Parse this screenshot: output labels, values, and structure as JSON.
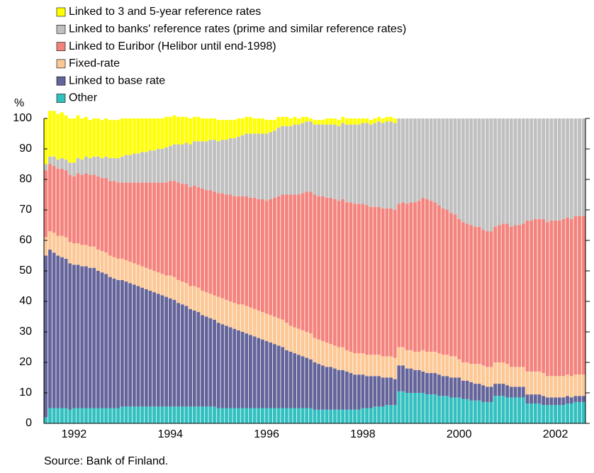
{
  "chart_data": {
    "type": "stacked_bar",
    "y_label": "%",
    "source": "Source: Bank of Finland.",
    "categories": [
      null,
      null,
      null,
      null,
      null,
      null,
      null,
      "1992",
      null,
      null,
      null,
      null,
      null,
      null,
      null,
      null,
      null,
      null,
      null,
      null,
      null,
      null,
      null,
      null,
      null,
      null,
      null,
      null,
      null,
      null,
      null,
      "1994",
      null,
      null,
      null,
      null,
      null,
      null,
      null,
      null,
      null,
      null,
      null,
      null,
      null,
      null,
      null,
      null,
      null,
      null,
      null,
      null,
      null,
      null,
      null,
      "1996",
      null,
      null,
      null,
      null,
      null,
      null,
      null,
      null,
      null,
      null,
      null,
      null,
      null,
      null,
      null,
      null,
      null,
      null,
      null,
      null,
      null,
      null,
      null,
      "1998",
      null,
      null,
      null,
      null,
      null,
      null,
      null,
      null,
      null,
      null,
      null,
      null,
      null,
      null,
      null,
      null,
      null,
      null,
      null,
      null,
      null,
      null,
      null,
      "2000",
      null,
      null,
      null,
      null,
      null,
      null,
      null,
      null,
      null,
      null,
      null,
      null,
      null,
      null,
      null,
      null,
      null,
      null,
      null,
      null,
      null,
      null,
      null,
      "2002",
      null,
      null,
      null,
      null,
      null,
      null,
      null
    ],
    "series": [
      {
        "name": "Linked to 3 and 5-year reference rates",
        "color": "#ffff00",
        "values": [
          15,
          15,
          15,
          15,
          15,
          14.5,
          14.5,
          14.5,
          14,
          13.5,
          13,
          12.5,
          12.5,
          12.5,
          12.5,
          12.5,
          12.5,
          12.5,
          12.5,
          12.5,
          12,
          12,
          11.5,
          11.5,
          11,
          11,
          10.5,
          10.5,
          10,
          10,
          10,
          9.5,
          9.5,
          9,
          9,
          8.5,
          8.5,
          8,
          8,
          7.5,
          7.5,
          7,
          7,
          7,
          6.5,
          6.5,
          6,
          6,
          6,
          5.5,
          5.5,
          5.5,
          5,
          5,
          5,
          4.5,
          4,
          3.5,
          3.5,
          3,
          3,
          2.5,
          2.5,
          2,
          2,
          1.5,
          1,
          1.5,
          1.5,
          1.5,
          2,
          2,
          2,
          2,
          2,
          2,
          2,
          2,
          2,
          1.5,
          1.5,
          1.5,
          1.5,
          1.5,
          1.5,
          1.5,
          1.5,
          1.5,
          0,
          0,
          0,
          0,
          0,
          0,
          0,
          0,
          0,
          0,
          0,
          0,
          0,
          0,
          0,
          0,
          0,
          0,
          0,
          0,
          0,
          0,
          0,
          0,
          0,
          0,
          0,
          0,
          0,
          0,
          0,
          0,
          0,
          0,
          0,
          0,
          0,
          0,
          0,
          0,
          0,
          0,
          0,
          0,
          0,
          0,
          0
        ]
      },
      {
        "name": "Linked to banks' reference rates (prime and similar reference rates)",
        "color": "#c0c0c0",
        "values": [
          2,
          2.5,
          3,
          3,
          3.5,
          3.5,
          4,
          4.5,
          5,
          5,
          5.5,
          5.5,
          6,
          6.5,
          6.5,
          7,
          7.5,
          7.5,
          8,
          8.5,
          9,
          9,
          9.5,
          9.5,
          10,
          10,
          10.5,
          10.5,
          11,
          11,
          11.5,
          11.5,
          12,
          12.5,
          13,
          13.5,
          14,
          14.5,
          15,
          15.5,
          16,
          16.5,
          17,
          17,
          17.5,
          18,
          18.5,
          19,
          19.5,
          20,
          20.5,
          21,
          21,
          21.5,
          21.5,
          22,
          22,
          22,
          22.5,
          22.5,
          22.5,
          22.5,
          23,
          23,
          23,
          23,
          23,
          23,
          23.5,
          23.5,
          24,
          24,
          24.5,
          24.5,
          25,
          25.5,
          25.5,
          26,
          26,
          26.5,
          27,
          27,
          27.5,
          28,
          28,
          28.5,
          28.5,
          28.5,
          28,
          27.5,
          28,
          27.5,
          27.5,
          27,
          26,
          26.5,
          27,
          27.5,
          28.5,
          29.5,
          30,
          31,
          31.5,
          33,
          34,
          34.5,
          35,
          35.5,
          35.5,
          36.5,
          37,
          37,
          35.5,
          35,
          34.5,
          34.5,
          35.5,
          35,
          35,
          34.5,
          33.5,
          33.5,
          33,
          33,
          33,
          34,
          33.5,
          33.5,
          33.5,
          33,
          32.5,
          33,
          32,
          32,
          32
        ]
      },
      {
        "name": "Linked to Euribor (Helibor until end-1998)",
        "color": "#f4837d",
        "values": [
          22,
          22,
          22,
          22,
          22,
          22,
          22,
          22,
          23,
          23,
          23.5,
          23.5,
          23.5,
          24,
          24,
          24.5,
          24.5,
          25,
          25,
          25,
          25.5,
          26,
          26.5,
          27,
          27.5,
          28,
          28.5,
          29,
          29.5,
          30,
          30.5,
          31,
          31.5,
          32,
          32,
          32.5,
          32.5,
          33,
          33,
          33.5,
          33.5,
          34,
          34,
          34,
          34.5,
          34.5,
          35,
          35,
          35.5,
          35.5,
          36,
          36,
          36.5,
          36.5,
          37,
          37,
          38,
          39,
          40,
          41,
          42,
          43,
          43.5,
          44,
          45,
          46,
          46.5,
          47,
          47,
          47.5,
          47.5,
          48,
          48,
          48,
          48.5,
          48.5,
          49,
          49,
          49,
          49,
          49,
          48.5,
          48.5,
          48.5,
          48.5,
          48.5,
          48.5,
          48.5,
          47,
          47.5,
          48,
          48.5,
          49,
          49.5,
          50,
          50,
          49.5,
          49,
          48.5,
          48,
          47.5,
          47,
          46.5,
          46,
          46,
          45.5,
          45.5,
          45,
          45,
          44.5,
          44.5,
          44.5,
          44.5,
          45,
          45.5,
          46,
          46,
          46.5,
          46.5,
          47,
          49.5,
          49.5,
          50,
          50,
          50.5,
          50.5,
          51,
          51,
          51,
          51.5,
          51.5,
          51.5,
          52,
          52,
          52
        ]
      },
      {
        "name": "Fixed-rate",
        "color": "#fcc896",
        "values": [
          6,
          6,
          6.5,
          6.5,
          7,
          7,
          7,
          7,
          7,
          7,
          7,
          7,
          7,
          7,
          7,
          7,
          7,
          7,
          7,
          7,
          7,
          7,
          7,
          7,
          7,
          7,
          7,
          7,
          7,
          7,
          7,
          7.5,
          7.5,
          7.5,
          7.5,
          7.5,
          7.5,
          8,
          8,
          8,
          8,
          8,
          8,
          8.5,
          8.5,
          8.5,
          8.5,
          8.5,
          8.5,
          9,
          9,
          9,
          9,
          9,
          9,
          9,
          9,
          9,
          9,
          9,
          9,
          8.5,
          8.5,
          8.5,
          8.5,
          8.5,
          8.5,
          8,
          8,
          8,
          8,
          7.5,
          7.5,
          7.5,
          7.5,
          7,
          7,
          7,
          7,
          7,
          7,
          7,
          7,
          7,
          7,
          7,
          7,
          7,
          6,
          6,
          6,
          6,
          6,
          6,
          7,
          7,
          7,
          7,
          7,
          7,
          7,
          7,
          7,
          6,
          6,
          6,
          6,
          6.5,
          6.5,
          6.5,
          6.5,
          6.5,
          7,
          7,
          7,
          7,
          6.5,
          6.5,
          6.5,
          6.5,
          7.5,
          7.5,
          7.5,
          7.5,
          7.5,
          7,
          7,
          7,
          7,
          7,
          7,
          7,
          7,
          7,
          7
        ]
      },
      {
        "name": "Linked to base rate",
        "color": "#64649a",
        "values": [
          53,
          52,
          51,
          50,
          49.5,
          49,
          48,
          47,
          47,
          46.5,
          46.5,
          46,
          46,
          45,
          44.5,
          44,
          43,
          42.5,
          42,
          41.5,
          41,
          40.5,
          40,
          39.5,
          39,
          38.5,
          38,
          37.5,
          37,
          36.5,
          36,
          35.5,
          35,
          34,
          33.5,
          33,
          32,
          31.5,
          31,
          30,
          29.5,
          29,
          28.5,
          28,
          27.5,
          27,
          26.5,
          26,
          25.5,
          25,
          24.5,
          24,
          23.5,
          23,
          22.5,
          22,
          21.5,
          21,
          20.5,
          20,
          19,
          18.5,
          18,
          17.5,
          17,
          16.5,
          16,
          15.5,
          15,
          14.5,
          14,
          14,
          13.5,
          13,
          13,
          12.5,
          12,
          11.5,
          11.5,
          11,
          10.5,
          10.5,
          10,
          10,
          9.5,
          9,
          9,
          8.5,
          8.5,
          8.5,
          8,
          8,
          7.5,
          7.5,
          7,
          7,
          7,
          7,
          7,
          6.5,
          6.5,
          6.5,
          6.5,
          6.5,
          6,
          6,
          6,
          5.5,
          5.5,
          5.5,
          5,
          5,
          4,
          4,
          4,
          4,
          3.5,
          3.5,
          3.5,
          3.5,
          3,
          3,
          3,
          3,
          3,
          2.5,
          2.5,
          2.5,
          2.5,
          2.5,
          2.5,
          2,
          2,
          2,
          2
        ]
      },
      {
        "name": "Other",
        "color": "#33c0c0",
        "values": [
          2,
          5,
          5,
          5,
          5,
          5,
          4.5,
          5,
          5,
          5,
          5,
          5,
          5,
          5,
          5,
          5,
          5,
          5,
          5,
          5.5,
          5.5,
          5.5,
          5.5,
          5.5,
          5.5,
          5.5,
          5.5,
          5.5,
          5.5,
          5.5,
          5.5,
          5.5,
          5.5,
          5.5,
          5.5,
          5.5,
          5.5,
          5.5,
          5.5,
          5.5,
          5.5,
          5.5,
          5.5,
          5,
          5,
          5,
          5,
          5,
          5,
          5,
          5,
          5,
          5,
          5,
          5,
          5,
          5,
          5,
          5,
          5,
          5,
          5,
          5,
          5,
          5,
          5,
          5,
          4.5,
          4.5,
          4.5,
          4.5,
          4.5,
          4.5,
          4.5,
          4.5,
          4.5,
          4.5,
          4.5,
          4.5,
          5,
          5,
          5,
          5.5,
          5.5,
          5.5,
          6,
          6,
          6,
          10.5,
          10.5,
          10,
          10,
          10,
          10,
          10,
          9.5,
          9.5,
          9.5,
          9,
          9,
          9,
          8.5,
          8.5,
          8.5,
          8,
          8,
          7.5,
          7.5,
          7.5,
          7,
          7,
          7,
          9,
          9,
          9,
          8.5,
          8.5,
          8.5,
          8.5,
          8.5,
          6.5,
          6.5,
          6.5,
          6.5,
          6,
          6,
          6,
          6,
          6,
          6,
          6.5,
          6.5,
          7,
          7,
          7
        ]
      }
    ],
    "ylim": [
      0,
      100
    ],
    "yticks": [
      0,
      10,
      20,
      30,
      40,
      50,
      60,
      70,
      80,
      90,
      100
    ],
    "legend": "top-left",
    "grid": false
  }
}
